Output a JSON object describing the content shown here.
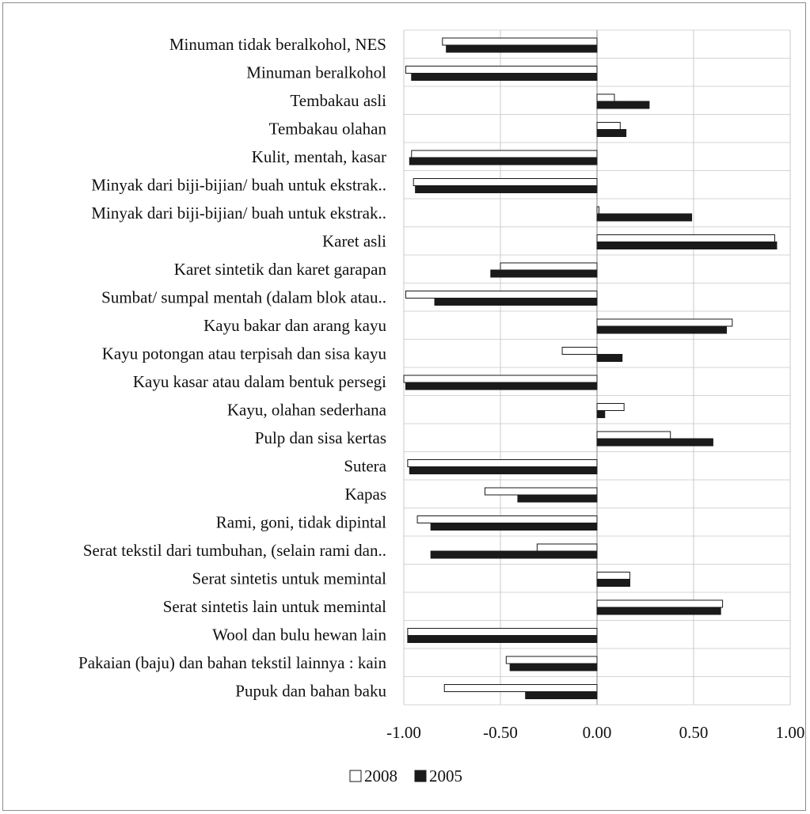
{
  "chart_data": {
    "type": "bar",
    "orientation": "horizontal",
    "categories": [
      "Minuman tidak beralkohol, NES",
      "Minuman beralkohol",
      "Tembakau asli",
      "Tembakau olahan",
      "Kulit, mentah, kasar",
      "Minyak dari biji-bijian/ buah untuk ekstrak..",
      "Minyak dari biji-bijian/ buah untuk ekstrak..",
      "Karet asli",
      "Karet sintetik dan karet garapan",
      "Sumbat/ sumpal mentah (dalam blok atau..",
      "Kayu bakar dan arang kayu",
      "Kayu potongan atau terpisah dan sisa kayu",
      "Kayu kasar atau dalam bentuk persegi",
      "Kayu, olahan sederhana",
      "Pulp dan sisa kertas",
      "Sutera",
      "Kapas",
      "Rami, goni, tidak dipintal",
      "Serat tekstil dari tumbuhan, (selain rami dan..",
      "Serat sintetis untuk memintal",
      "Serat sintetis lain untuk memintal",
      "Wool dan bulu hewan lain",
      "Pakaian (baju) dan bahan tekstil lainnya : kain",
      "Pupuk dan bahan baku"
    ],
    "series": [
      {
        "name": "2008",
        "color": "#ffffff",
        "values": [
          -0.8,
          -0.99,
          0.09,
          0.12,
          -0.96,
          -0.95,
          0.01,
          0.92,
          -0.5,
          -0.99,
          0.7,
          -0.18,
          -1.0,
          0.14,
          0.38,
          -0.98,
          -0.58,
          -0.93,
          -0.31,
          0.17,
          0.65,
          -0.98,
          -0.47,
          -0.79
        ]
      },
      {
        "name": "2005",
        "color": "#1a1a1a",
        "values": [
          -0.78,
          -0.96,
          0.27,
          0.15,
          -0.97,
          -0.94,
          0.49,
          0.93,
          -0.55,
          -0.84,
          0.67,
          0.13,
          -0.99,
          0.04,
          0.6,
          -0.97,
          -0.41,
          -0.86,
          -0.86,
          0.17,
          0.64,
          -0.98,
          -0.45,
          -0.37
        ]
      }
    ],
    "xlim": [
      -1.0,
      1.0
    ],
    "x_ticks": [
      -1.0,
      -0.5,
      0.0,
      0.5,
      1.0
    ],
    "x_tick_labels": [
      "-1.00",
      "-0.50",
      "0.00",
      "0.50",
      "1.00"
    ],
    "grid": "vertical",
    "legend_position": "bottom",
    "title": "",
    "xlabel": "",
    "ylabel": ""
  }
}
